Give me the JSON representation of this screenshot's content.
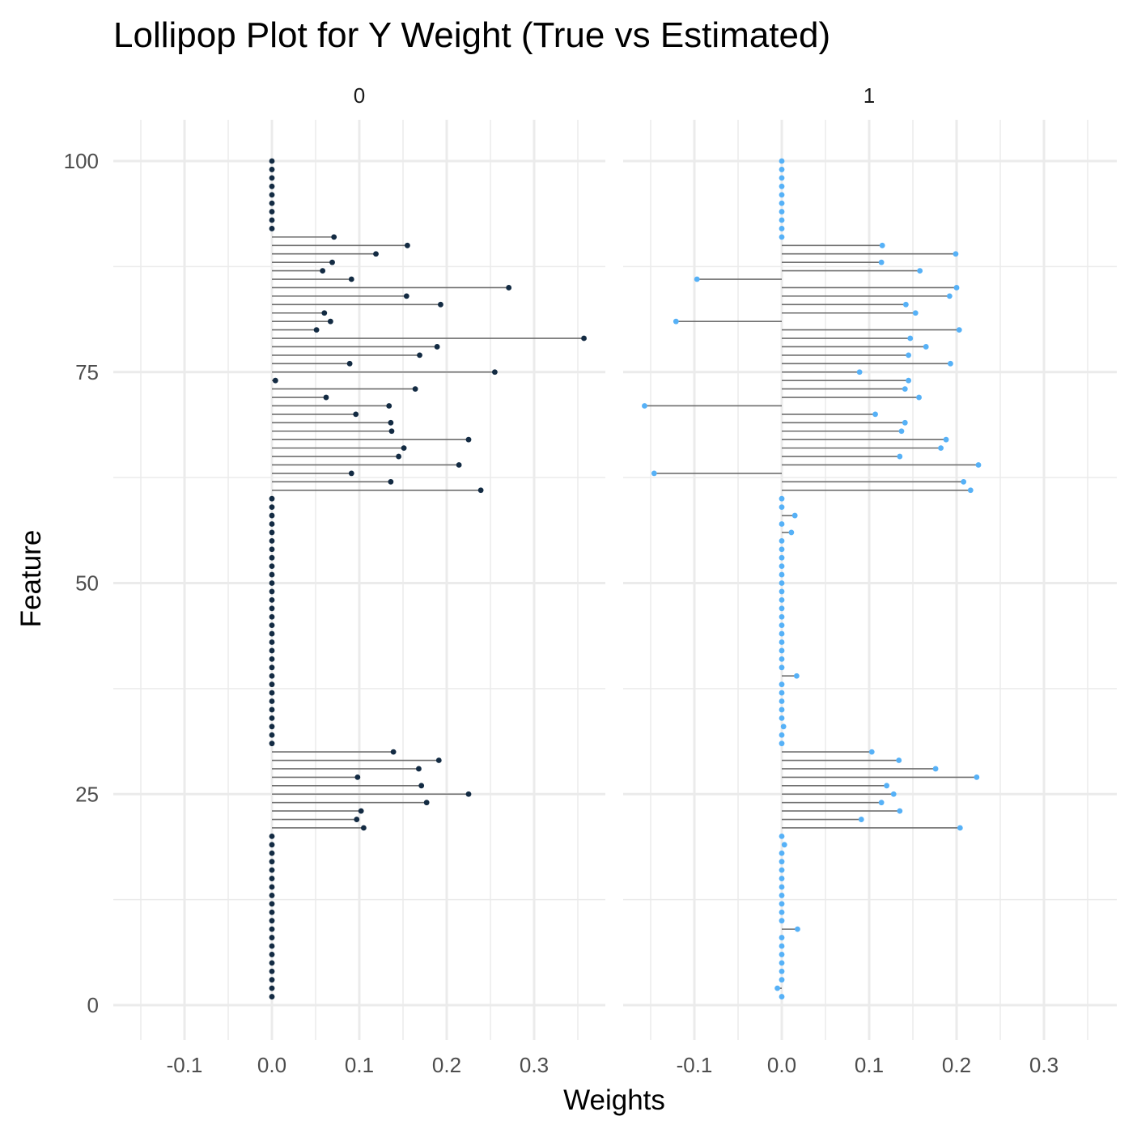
{
  "chart_data": {
    "type": "lollipop",
    "title": "Lollipop Plot for Y Weight (True vs Estimated)",
    "xlabel": "Weights",
    "ylabel": "Feature",
    "xlim": [
      -0.15,
      0.37
    ],
    "ylim": [
      -2,
      105
    ],
    "x_ticks": [
      -0.1,
      0.0,
      0.1,
      0.2,
      0.3
    ],
    "x_tick_labels": [
      "-0.1",
      "0.0",
      "0.1",
      "0.2",
      "0.3"
    ],
    "y_ticks": [
      0,
      25,
      50,
      75,
      100
    ],
    "y_tick_labels": [
      "0",
      "25",
      "50",
      "75",
      "100"
    ],
    "grid": true,
    "legend": "none",
    "colors": {
      "panel_0": "#132b43",
      "panel_1": "#56b1f7",
      "stem": "#6e6e6e",
      "grid": "#ebebeb"
    },
    "panels": [
      {
        "name": "0",
        "features": [
          1,
          2,
          3,
          4,
          5,
          6,
          7,
          8,
          9,
          10,
          11,
          12,
          13,
          14,
          15,
          16,
          17,
          18,
          19,
          20,
          21,
          22,
          23,
          24,
          25,
          26,
          27,
          28,
          29,
          30,
          31,
          32,
          33,
          34,
          35,
          36,
          37,
          38,
          39,
          40,
          41,
          42,
          43,
          44,
          45,
          46,
          47,
          48,
          49,
          50,
          51,
          52,
          53,
          54,
          55,
          56,
          57,
          58,
          59,
          60,
          61,
          62,
          63,
          64,
          65,
          66,
          67,
          68,
          69,
          70,
          71,
          72,
          73,
          74,
          75,
          76,
          77,
          78,
          79,
          80,
          81,
          82,
          83,
          84,
          85,
          86,
          87,
          88,
          89,
          90,
          91,
          92,
          93,
          94,
          95,
          96,
          97,
          98,
          99,
          100
        ],
        "values": [
          0,
          0,
          0,
          0,
          0,
          0,
          0,
          0,
          0,
          0,
          0,
          0,
          0,
          0,
          0,
          0,
          0,
          0,
          0,
          0,
          0.105,
          0.097,
          0.102,
          0.177,
          0.225,
          0.171,
          0.098,
          0.168,
          0.191,
          0.139,
          0,
          0,
          0,
          0,
          0,
          0,
          0,
          0,
          0,
          0,
          0,
          0,
          0,
          0,
          0,
          0,
          0,
          0,
          0,
          0,
          0,
          0,
          0,
          0,
          0,
          0,
          0,
          0,
          0,
          0,
          0.239,
          0.136,
          0.091,
          0.214,
          0.145,
          0.151,
          0.225,
          0.137,
          0.136,
          0.096,
          0.134,
          0.062,
          0.164,
          0.004,
          0.255,
          0.089,
          0.169,
          0.189,
          0.357,
          0.051,
          0.067,
          0.06,
          0.193,
          0.154,
          0.271,
          0.091,
          0.058,
          0.069,
          0.119,
          0.155,
          0.071,
          0,
          0,
          0,
          0,
          0,
          0,
          0,
          0,
          0
        ]
      },
      {
        "name": "1",
        "features": [
          1,
          2,
          3,
          4,
          5,
          6,
          7,
          8,
          9,
          10,
          11,
          12,
          13,
          14,
          15,
          16,
          17,
          18,
          19,
          20,
          21,
          22,
          23,
          24,
          25,
          26,
          27,
          28,
          29,
          30,
          31,
          32,
          33,
          34,
          35,
          36,
          37,
          38,
          39,
          40,
          41,
          42,
          43,
          44,
          45,
          46,
          47,
          48,
          49,
          50,
          51,
          52,
          53,
          54,
          55,
          56,
          57,
          58,
          59,
          60,
          61,
          62,
          63,
          64,
          65,
          66,
          67,
          68,
          69,
          70,
          71,
          72,
          73,
          74,
          75,
          76,
          77,
          78,
          79,
          80,
          81,
          82,
          83,
          84,
          85,
          86,
          87,
          88,
          89,
          90,
          91,
          92,
          93,
          94,
          95,
          96,
          97,
          98,
          99,
          100
        ],
        "values": [
          0,
          -0.005,
          0,
          0,
          0,
          0,
          0,
          0,
          0.018,
          0,
          0,
          0,
          0,
          0,
          0,
          0,
          0,
          0,
          0.003,
          0,
          0.204,
          0.091,
          0.135,
          0.114,
          0.128,
          0.12,
          0.223,
          0.176,
          0.134,
          0.103,
          0,
          0,
          0.002,
          0,
          0,
          0,
          0,
          0,
          0.017,
          0,
          0,
          0,
          0,
          0,
          0,
          0,
          0,
          0,
          0,
          0,
          0,
          0,
          0,
          0,
          0,
          0.011,
          0,
          0.015,
          0,
          0,
          0.216,
          0.208,
          -0.146,
          0.225,
          0.135,
          0.182,
          0.188,
          0.137,
          0.141,
          0.107,
          -0.157,
          0.157,
          0.141,
          0.145,
          0.089,
          0.193,
          0.145,
          0.165,
          0.147,
          0.203,
          -0.121,
          0.153,
          0.142,
          0.192,
          0.2,
          -0.097,
          0.158,
          0.114,
          0.199,
          0.115,
          0,
          0,
          0,
          0,
          0,
          0,
          0,
          0,
          0,
          0
        ]
      }
    ]
  }
}
